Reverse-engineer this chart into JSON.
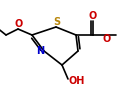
{
  "bg_color": "#ffffff",
  "line_color": "#000000",
  "atom_colors": {
    "N": "#0000cd",
    "O": "#cc0000",
    "S": "#b8860b"
  },
  "bond_width": 1.2,
  "font_size_atom": 7.0
}
